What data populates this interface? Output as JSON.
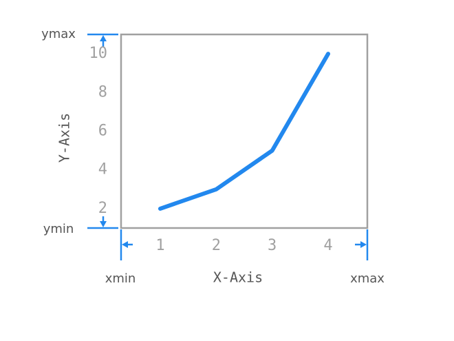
{
  "chart_data": {
    "type": "line",
    "x": [
      1,
      2,
      3,
      4
    ],
    "series": [
      {
        "color": "#2288ee",
        "values": [
          2,
          3,
          5,
          10
        ]
      }
    ],
    "xlim": [
      0.3,
      4.7
    ],
    "ylim": [
      1,
      11
    ],
    "xticks": [
      1,
      2,
      3,
      4
    ],
    "yticks": [
      2,
      4,
      6,
      8,
      10
    ],
    "x_label": "X-Axis",
    "y_label": "Y-Axis",
    "annotations": [
      "ymax",
      "ymin",
      "xmin",
      "xmax"
    ]
  }
}
